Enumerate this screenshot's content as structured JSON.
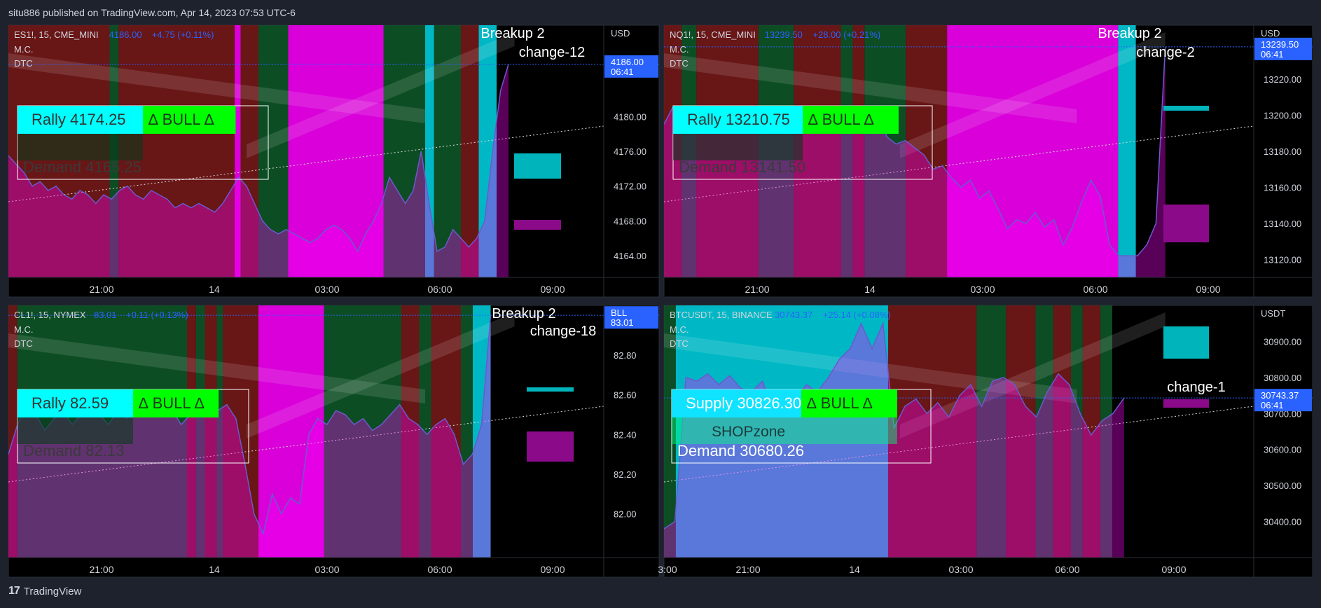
{
  "header": {
    "published": "situ886 published on TradingView.com, Apr 14, 2023 07:53 UTC-6"
  },
  "footer": {
    "brand": "TradingView"
  },
  "colors": {
    "bg": "#000000",
    "page": "#1e222d",
    "bull": "#00ff00",
    "cyan": "#00ffff",
    "magenta": "#ff00ff",
    "red": "#7a1a1a",
    "green": "#0f5a2a"
  },
  "chart_data": [
    {
      "type": "area",
      "symbol": "ES1!, 15, CME_MINI",
      "price": "4186.00",
      "change": "+4.75 (+0.11%)",
      "indicators": [
        "M.C.",
        "DTC"
      ],
      "currency": "USD",
      "last_price_tag": [
        "4186.00",
        "06:41"
      ],
      "ylim": [
        4161.5,
        4190.5
      ],
      "yticks": [
        "4180.00",
        "4176.00",
        "4172.00",
        "4168.00",
        "4164.00"
      ],
      "xticks": [
        "21:00",
        "14",
        "03:00",
        "06:00",
        "09:00"
      ],
      "box_rally": "Rally  4174.25",
      "box_bull": "∆ BULL ∆",
      "box_demand": "Demand  4165.25",
      "annotation": [
        "Breakup 2",
        "change-12"
      ],
      "values": [
        4175.5,
        4174.5,
        4173.5,
        4172,
        4172.5,
        4171.5,
        4172,
        4171,
        4170.5,
        4171.5,
        4171,
        4170,
        4171,
        4170.5,
        4171.5,
        4172,
        4171,
        4170.5,
        4171.5,
        4171,
        4170.5,
        4169.5,
        4170,
        4169.5,
        4170,
        4169.5,
        4169,
        4170,
        4171.5,
        4173,
        4172,
        4170,
        4168,
        4167,
        4166.5,
        4167,
        4166.5,
        4166,
        4165.5,
        4166,
        4167,
        4167.5,
        4167,
        4166,
        4164.5,
        4166.5,
        4168,
        4170,
        4173,
        4171.5,
        4170,
        4171.5,
        4176,
        4170,
        4164.5,
        4165,
        4167,
        4166,
        4165,
        4166,
        4168,
        4176,
        4183,
        4186
      ]
    },
    {
      "type": "area",
      "symbol": "NQ1!, 15, CME_MINI",
      "price": "13239.50",
      "change": "+28.00 (+0.21%)",
      "indicators": [
        "M.C.",
        "DTC"
      ],
      "currency": "USD",
      "last_price_tag": [
        "13239.50",
        "06:41"
      ],
      "ylim": [
        13110,
        13250
      ],
      "yticks": [
        "13220.00",
        "13200.00",
        "13180.00",
        "13160.00",
        "13140.00",
        "13120.00"
      ],
      "xticks": [
        "21:00",
        "14",
        "03:00",
        "06:00",
        "09:00"
      ],
      "box_rally": "Rally  13210.75",
      "box_bull": "∆ BULL ∆",
      "box_demand": "Demand  13141.50",
      "annotation": [
        "Breakup 2",
        "change-2"
      ],
      "values": [
        13195,
        13205,
        13200,
        13198,
        13201,
        13196,
        13199,
        13202,
        13196,
        13200,
        13198,
        13203,
        13197,
        13200,
        13199,
        13201,
        13196,
        13198,
        13194,
        13199,
        13202,
        13200,
        13204,
        13203,
        13188,
        13184,
        13186,
        13182,
        13178,
        13170,
        13172,
        13165,
        13160,
        13164,
        13154,
        13158,
        13148,
        13137,
        13142,
        13140,
        13146,
        13138,
        13142,
        13128,
        13138,
        13152,
        13164,
        13155,
        13128,
        13122,
        13122,
        13122,
        13128,
        13140,
        13238
      ]
    },
    {
      "type": "area",
      "symbol": "CL1!, 15, NYMEX",
      "price": "83.01",
      "change": "+0.11 (+0.13%)",
      "indicators": [
        "M.C.",
        "DTC"
      ],
      "currency": "USD",
      "last_price_tag": [
        "BLL",
        "83.01"
      ],
      "ylim": [
        81.78,
        83.05
      ],
      "yticks": [
        "82.80",
        "82.60",
        "82.40",
        "82.20",
        "82.00"
      ],
      "xticks": [
        "21:00",
        "14",
        "03:00",
        "06:00",
        "09:00"
      ],
      "box_rally": "Rally  82.59",
      "box_bull": "∆ BULL ∆",
      "box_demand": "Demand  82.13",
      "annotation": [
        "Breakup 2",
        "change-18"
      ],
      "values": [
        82.3,
        82.45,
        82.55,
        82.5,
        82.42,
        82.48,
        82.52,
        82.45,
        82.5,
        82.55,
        82.5,
        82.45,
        82.52,
        82.48,
        82.55,
        82.5,
        82.55,
        82.5,
        82.52,
        82.45,
        82.5,
        82.55,
        82.5,
        82.52,
        82.55,
        82.48,
        82.25,
        82.0,
        81.9,
        82.1,
        82.0,
        82.08,
        82.05,
        82.4,
        82.48,
        82.45,
        82.52,
        82.5,
        82.45,
        82.48,
        82.42,
        82.45,
        82.5,
        82.55,
        82.48,
        82.45,
        82.4,
        82.45,
        82.48,
        82.4,
        82.25,
        82.3,
        82.45,
        83.0
      ]
    },
    {
      "type": "area",
      "symbol": "BTCUSDT, 15, BINANCE",
      "price": "30743.37",
      "change": "+25.14 (+0.08%)",
      "indicators": [
        "M.C.",
        "DTC"
      ],
      "currency": "USDT",
      "last_price_tag": [
        "30743.37",
        "06:41"
      ],
      "ylim": [
        30300,
        31000
      ],
      "yticks": [
        "30900.00",
        "30800.00",
        "30700.00",
        "30600.00",
        "30500.00",
        "30400.00"
      ],
      "xticks": [
        "3:00",
        "21:00",
        "14",
        "03:00",
        "06:00",
        "09:00"
      ],
      "box_rally": "Supply  30826.30",
      "box_bull": "∆ BULL ∆",
      "box_mid": "SHOPzone",
      "box_demand": "Demand  30680.26",
      "annotation": [
        "change-1"
      ],
      "values": [
        30380,
        30400,
        30800,
        30790,
        30810,
        30780,
        30805,
        30770,
        30760,
        30790,
        30700,
        30690,
        30740,
        30780,
        30760,
        30800,
        30850,
        30880,
        30950,
        30880,
        30950,
        30660,
        30720,
        30740,
        30700,
        30730,
        30690,
        30750,
        30780,
        30720,
        30790,
        30800,
        30780,
        30720,
        30690,
        30760,
        30810,
        30780,
        30700,
        30640,
        30680,
        30700,
        30743
      ]
    }
  ]
}
